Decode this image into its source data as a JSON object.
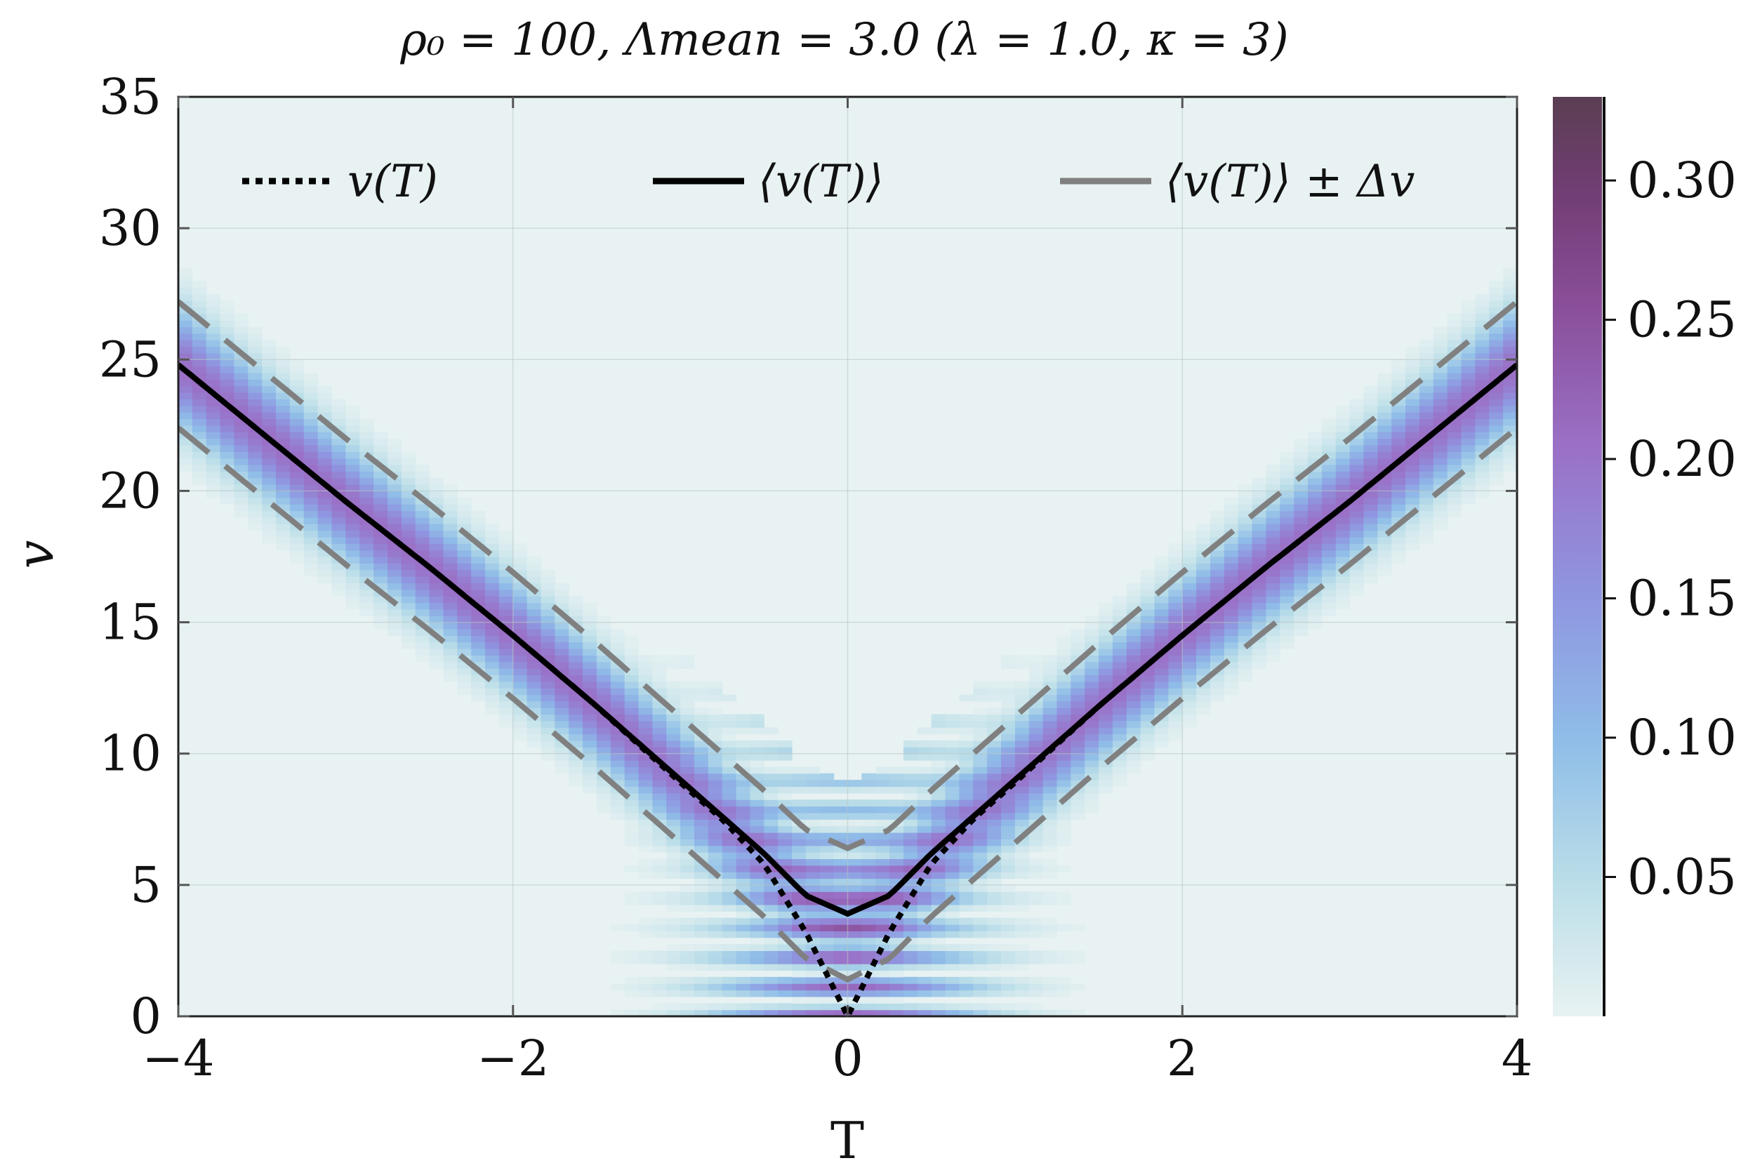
{
  "chart_data": {
    "type": "heatmap",
    "title": "ρ₀ = 100,  Λmean = 3.0 (λ = 1.0, κ = 3)",
    "xlabel": "T",
    "ylabel": "v",
    "xlim": [
      -4,
      4
    ],
    "ylim": [
      0,
      35
    ],
    "xticks": [
      -4,
      -2,
      0,
      2,
      4
    ],
    "xtick_labels": [
      "−4",
      "−2",
      "0",
      "2",
      "4"
    ],
    "yticks": [
      0,
      5,
      10,
      15,
      20,
      25,
      30,
      35
    ],
    "ytick_labels": [
      "0",
      "5",
      "10",
      "15",
      "20",
      "25",
      "30",
      "35"
    ],
    "grid": true,
    "legend_position": "top",
    "colorbar": {
      "min": 0,
      "max": 0.33,
      "ticks": [
        0.05,
        0.1,
        0.15,
        0.2,
        0.25,
        0.3
      ],
      "tick_labels": [
        "0.05",
        "0.10",
        "0.15",
        "0.20",
        "0.25",
        "0.30"
      ],
      "colors": [
        "#e8f2f2",
        "#9fcfe3",
        "#8fa8e6",
        "#9c7ad2",
        "#8a52a4",
        "#6e3d6c",
        "#5a3e52"
      ]
    },
    "series": [
      {
        "name": "v(T)",
        "style": "dotted",
        "color": "#000000",
        "x": [
          -4,
          -3.5,
          -3,
          -2.5,
          -2,
          -1.5,
          -1,
          -0.75,
          -0.5,
          -0.25,
          0,
          0.25,
          0.5,
          0.75,
          1,
          1.5,
          2,
          2.5,
          3,
          3.5,
          4
        ],
        "y": [
          24.8,
          22.2,
          19.6,
          17.1,
          14.5,
          11.8,
          8.9,
          7.5,
          5.8,
          3.2,
          0.0,
          3.2,
          5.8,
          7.5,
          8.9,
          11.8,
          14.5,
          17.1,
          19.6,
          22.2,
          24.8
        ]
      },
      {
        "name": "⟨v(T)⟩",
        "style": "solid",
        "color": "#000000",
        "x": [
          -4,
          -3.5,
          -3,
          -2.5,
          -2,
          -1.5,
          -1,
          -0.75,
          -0.5,
          -0.25,
          0,
          0.25,
          0.5,
          0.75,
          1,
          1.5,
          2,
          2.5,
          3,
          3.5,
          4
        ],
        "y": [
          24.8,
          22.2,
          19.6,
          17.1,
          14.5,
          11.8,
          9.0,
          7.6,
          6.2,
          4.6,
          3.9,
          4.6,
          6.2,
          7.6,
          9.0,
          11.8,
          14.5,
          17.1,
          19.6,
          22.2,
          24.8
        ]
      },
      {
        "name": "⟨v(T)⟩ ± Δv",
        "style": "dashed",
        "color": "#808080",
        "x": [
          -4,
          -3.5,
          -3,
          -2.5,
          -2,
          -1.5,
          -1,
          -0.75,
          -0.5,
          -0.25,
          0,
          0.25,
          0.5,
          0.75,
          1,
          1.5,
          2,
          2.5,
          3,
          3.5,
          4
        ],
        "y_upper": [
          27.2,
          24.6,
          22.0,
          19.5,
          16.9,
          14.2,
          11.4,
          10.0,
          8.6,
          7.1,
          6.4,
          7.1,
          8.6,
          10.0,
          11.4,
          14.2,
          16.9,
          19.5,
          22.0,
          24.6,
          27.2
        ],
        "y_lower": [
          22.4,
          19.8,
          17.2,
          14.7,
          12.1,
          9.4,
          6.6,
          5.2,
          3.8,
          2.2,
          1.4,
          2.2,
          3.8,
          5.2,
          6.6,
          9.4,
          12.1,
          14.7,
          17.2,
          19.8,
          22.4
        ]
      }
    ]
  }
}
